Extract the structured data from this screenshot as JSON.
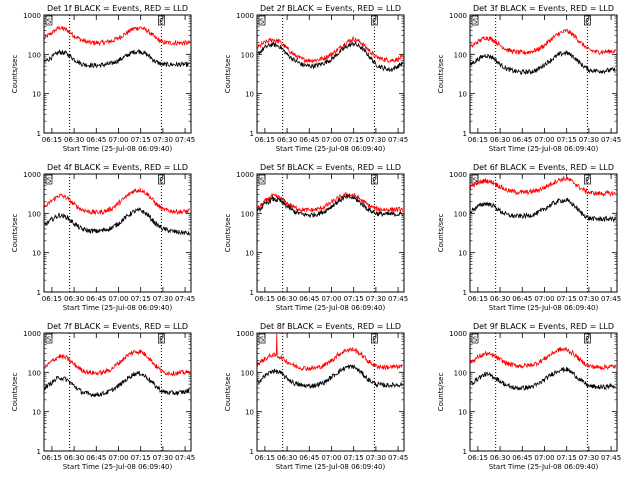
{
  "figure": {
    "background": "#ffffff",
    "axis_color": "#000000",
    "series_colors": {
      "events": "#000000",
      "lld": "#ff0000"
    },
    "marker_line_style": "dotted"
  },
  "chart_data": [
    {
      "type": "line",
      "title": "Det 1f BLACK = Events, RED = LLD",
      "xlabel": "Start Time (25-Jul-08 06:09:40)",
      "ylabel": "Counts/sec",
      "xlim": [
        "06:09:40",
        "07:49:00"
      ],
      "ylim": [
        1,
        1000
      ],
      "yscale": "log",
      "xticks": [
        "06:15",
        "06:30",
        "06:45",
        "07:00",
        "07:15",
        "07:30",
        "07:45"
      ],
      "yticks": [
        "1",
        "10",
        "100",
        "1000"
      ],
      "vlines": [
        "06:27",
        "07:29"
      ],
      "corner_markers": [
        "S",
        "E"
      ],
      "x": [
        "06:10",
        "06:15",
        "06:20",
        "06:25",
        "06:30",
        "06:35",
        "06:40",
        "06:45",
        "06:50",
        "06:55",
        "07:00",
        "07:05",
        "07:10",
        "07:15",
        "07:20",
        "07:25",
        "07:30",
        "07:35",
        "07:40",
        "07:45",
        "07:48"
      ],
      "series": [
        {
          "name": "LLD",
          "color": "red",
          "values": [
            260,
            350,
            480,
            420,
            300,
            230,
            200,
            195,
            200,
            215,
            260,
            340,
            450,
            480,
            390,
            260,
            200,
            195,
            195,
            195,
            195
          ]
        },
        {
          "name": "Events",
          "color": "black",
          "values": [
            65,
            85,
            115,
            105,
            75,
            57,
            53,
            52,
            54,
            58,
            70,
            90,
            115,
            120,
            95,
            65,
            55,
            55,
            55,
            55,
            55
          ]
        }
      ]
    },
    {
      "type": "line",
      "title": "Det 2f BLACK = Events, RED = LLD",
      "xlabel": "Start Time (25-Jul-08 06:09:40)",
      "ylabel": "Counts/sec",
      "xlim": [
        "06:09:40",
        "07:49:00"
      ],
      "ylim": [
        1,
        1000
      ],
      "yscale": "log",
      "xticks": [
        "06:15",
        "06:30",
        "06:45",
        "07:00",
        "07:15",
        "07:30",
        "07:45"
      ],
      "yticks": [
        "1",
        "10",
        "100",
        "1000"
      ],
      "vlines": [
        "06:27",
        "07:29"
      ],
      "corner_markers": [
        "S",
        "E"
      ],
      "x": [
        "06:10",
        "06:15",
        "06:20",
        "06:25",
        "06:30",
        "06:35",
        "06:40",
        "06:45",
        "06:50",
        "06:55",
        "07:00",
        "07:05",
        "07:10",
        "07:15",
        "07:20",
        "07:25",
        "07:30",
        "07:35",
        "07:40",
        "07:45",
        "07:48"
      ],
      "series": [
        {
          "name": "LLD",
          "color": "red",
          "values": [
            150,
            200,
            240,
            210,
            140,
            95,
            75,
            70,
            72,
            80,
            100,
            140,
            200,
            250,
            200,
            130,
            85,
            75,
            70,
            75,
            85
          ]
        },
        {
          "name": "Events",
          "color": "black",
          "values": [
            100,
            150,
            180,
            160,
            100,
            70,
            55,
            50,
            52,
            60,
            75,
            110,
            155,
            190,
            150,
            95,
            55,
            45,
            40,
            50,
            60
          ]
        }
      ]
    },
    {
      "type": "line",
      "title": "Det 3f BLACK = Events, RED = LLD",
      "xlabel": "Start Time (25-Jul-08 06:09:40)",
      "ylabel": "Counts/sec",
      "xlim": [
        "06:09:40",
        "07:49:00"
      ],
      "ylim": [
        1,
        1000
      ],
      "yscale": "log",
      "xticks": [
        "06:15",
        "06:30",
        "06:45",
        "07:00",
        "07:15",
        "07:30",
        "07:45"
      ],
      "yticks": [
        "1",
        "10",
        "100",
        "1000"
      ],
      "vlines": [
        "06:27",
        "07:29"
      ],
      "corner_markers": [
        "S",
        "E"
      ],
      "x": [
        "06:10",
        "06:15",
        "06:20",
        "06:25",
        "06:30",
        "06:35",
        "06:40",
        "06:45",
        "06:50",
        "06:55",
        "07:00",
        "07:05",
        "07:10",
        "07:15",
        "07:20",
        "07:25",
        "07:30",
        "07:35",
        "07:40",
        "07:45",
        "07:48"
      ],
      "series": [
        {
          "name": "LLD",
          "color": "red",
          "values": [
            150,
            210,
            270,
            240,
            170,
            130,
            115,
            110,
            115,
            130,
            170,
            250,
            340,
            400,
            300,
            190,
            130,
            115,
            115,
            120,
            120
          ]
        },
        {
          "name": "Events",
          "color": "black",
          "values": [
            55,
            75,
            95,
            85,
            55,
            42,
            37,
            35,
            36,
            40,
            55,
            75,
            100,
            110,
            85,
            55,
            40,
            38,
            38,
            40,
            40
          ]
        }
      ]
    },
    {
      "type": "line",
      "title": "Det 4f BLACK = Events, RED = LLD",
      "xlabel": "Start Time (25-Jul-08 06:09:40)",
      "ylabel": "Counts/sec",
      "xlim": [
        "06:09:40",
        "07:49:00"
      ],
      "ylim": [
        1,
        1000
      ],
      "yscale": "log",
      "xticks": [
        "06:15",
        "06:30",
        "06:45",
        "07:00",
        "07:15",
        "07:30",
        "07:45"
      ],
      "yticks": [
        "1",
        "10",
        "100",
        "1000"
      ],
      "vlines": [
        "06:27",
        "07:29"
      ],
      "corner_markers": [
        "S",
        "E"
      ],
      "x": [
        "06:10",
        "06:15",
        "06:20",
        "06:25",
        "06:30",
        "06:35",
        "06:40",
        "06:45",
        "06:50",
        "06:55",
        "07:00",
        "07:05",
        "07:10",
        "07:15",
        "07:20",
        "07:25",
        "07:30",
        "07:35",
        "07:40",
        "07:45",
        "07:48"
      ],
      "series": [
        {
          "name": "LLD",
          "color": "red",
          "values": [
            140,
            210,
            290,
            250,
            170,
            125,
            110,
            105,
            110,
            130,
            180,
            260,
            370,
            400,
            300,
            180,
            125,
            115,
            110,
            110,
            115
          ]
        },
        {
          "name": "Events",
          "color": "black",
          "values": [
            50,
            70,
            90,
            80,
            55,
            40,
            36,
            35,
            37,
            42,
            55,
            80,
            110,
            120,
            90,
            55,
            40,
            36,
            33,
            32,
            30
          ]
        }
      ]
    },
    {
      "type": "line",
      "title": "Det 5f BLACK = Events, RED = LLD",
      "xlabel": "Start Time (25-Jul-08 06:09:40)",
      "ylabel": "Counts/sec",
      "xlim": [
        "06:09:40",
        "07:49:00"
      ],
      "ylim": [
        1,
        1000
      ],
      "yscale": "log",
      "xticks": [
        "06:15",
        "06:30",
        "06:45",
        "07:00",
        "07:15",
        "07:30",
        "07:45"
      ],
      "yticks": [
        "1",
        "10",
        "100",
        "1000"
      ],
      "vlines": [
        "06:27",
        "07:29"
      ],
      "corner_markers": [
        "S",
        "E"
      ],
      "x": [
        "06:10",
        "06:15",
        "06:20",
        "06:25",
        "06:30",
        "06:35",
        "06:40",
        "06:45",
        "06:50",
        "06:55",
        "07:00",
        "07:05",
        "07:10",
        "07:15",
        "07:20",
        "07:25",
        "07:30",
        "07:35",
        "07:40",
        "07:45",
        "07:48"
      ],
      "series": [
        {
          "name": "LLD",
          "color": "red",
          "values": [
            130,
            200,
            280,
            250,
            180,
            140,
            125,
            120,
            125,
            145,
            190,
            250,
            300,
            290,
            220,
            160,
            130,
            125,
            125,
            125,
            125
          ]
        },
        {
          "name": "Events",
          "color": "black",
          "values": [
            110,
            170,
            230,
            210,
            150,
            110,
            95,
            90,
            95,
            110,
            150,
            210,
            260,
            250,
            180,
            125,
            100,
            95,
            95,
            95,
            95
          ]
        }
      ]
    },
    {
      "type": "line",
      "title": "Det 6f BLACK = Events, RED = LLD",
      "xlabel": "Start Time (25-Jul-08 06:09:40)",
      "ylabel": "Counts/sec",
      "xlim": [
        "06:09:40",
        "07:49:00"
      ],
      "ylim": [
        1,
        1000
      ],
      "yscale": "log",
      "xticks": [
        "06:15",
        "06:30",
        "06:45",
        "07:00",
        "07:15",
        "07:30",
        "07:45"
      ],
      "yticks": [
        "1",
        "10",
        "100",
        "1000"
      ],
      "vlines": [
        "06:27",
        "07:29"
      ],
      "corner_markers": [
        "S",
        "E"
      ],
      "x": [
        "06:10",
        "06:15",
        "06:20",
        "06:25",
        "06:30",
        "06:35",
        "06:40",
        "06:45",
        "06:50",
        "06:55",
        "07:00",
        "07:05",
        "07:10",
        "07:15",
        "07:20",
        "07:25",
        "07:30",
        "07:35",
        "07:40",
        "07:45",
        "07:48"
      ],
      "series": [
        {
          "name": "LLD",
          "color": "red",
          "values": [
            480,
            600,
            680,
            620,
            480,
            380,
            350,
            340,
            350,
            380,
            450,
            580,
            720,
            760,
            600,
            420,
            340,
            320,
            320,
            320,
            320
          ]
        },
        {
          "name": "Events",
          "color": "black",
          "values": [
            110,
            150,
            180,
            160,
            115,
            90,
            85,
            85,
            88,
            100,
            130,
            170,
            210,
            215,
            160,
            100,
            75,
            72,
            72,
            72,
            72
          ]
        }
      ]
    },
    {
      "type": "line",
      "title": "Det 7f BLACK = Events, RED = LLD",
      "xlabel": "Start Time (25-Jul-08 06:09:40)",
      "ylabel": "Counts/sec",
      "xlim": [
        "06:09:40",
        "07:49:00"
      ],
      "ylim": [
        1,
        1000
      ],
      "yscale": "log",
      "xticks": [
        "06:15",
        "06:30",
        "06:45",
        "07:00",
        "07:15",
        "07:30",
        "07:45"
      ],
      "yticks": [
        "1",
        "10",
        "100",
        "1000"
      ],
      "vlines": [
        "06:27",
        "07:29"
      ],
      "corner_markers": [
        "S",
        "E"
      ],
      "x": [
        "06:10",
        "06:15",
        "06:20",
        "06:25",
        "06:30",
        "06:35",
        "06:40",
        "06:45",
        "06:50",
        "06:55",
        "07:00",
        "07:05",
        "07:10",
        "07:15",
        "07:20",
        "07:25",
        "07:30",
        "07:35",
        "07:40",
        "07:45",
        "07:48"
      ],
      "series": [
        {
          "name": "LLD",
          "color": "red",
          "values": [
            130,
            190,
            260,
            230,
            160,
            115,
            100,
            95,
            100,
            120,
            170,
            250,
            330,
            340,
            250,
            150,
            100,
            95,
            95,
            100,
            100
          ]
        },
        {
          "name": "Events",
          "color": "black",
          "values": [
            40,
            55,
            75,
            65,
            45,
            32,
            28,
            27,
            29,
            34,
            45,
            65,
            90,
            95,
            70,
            45,
            32,
            30,
            30,
            32,
            35
          ]
        }
      ]
    },
    {
      "type": "line",
      "title": "Det 8f BLACK = Events, RED = LLD",
      "xlabel": "Start Time (25-Jul-08 06:09:40)",
      "ylabel": "Counts/sec",
      "xlim": [
        "06:09:40",
        "07:49:00"
      ],
      "ylim": [
        1,
        1000
      ],
      "yscale": "log",
      "xticks": [
        "06:15",
        "06:30",
        "06:45",
        "07:00",
        "07:15",
        "07:30",
        "07:45"
      ],
      "yticks": [
        "1",
        "10",
        "100",
        "1000"
      ],
      "vlines": [
        "06:27",
        "07:29"
      ],
      "corner_markers": [
        "S",
        "E"
      ],
      "annotations": [
        {
          "type": "spike",
          "series": "LLD",
          "x": "06:23",
          "value": 1000
        }
      ],
      "x": [
        "06:10",
        "06:15",
        "06:20",
        "06:25",
        "06:30",
        "06:35",
        "06:40",
        "06:45",
        "06:50",
        "06:55",
        "07:00",
        "07:05",
        "07:10",
        "07:15",
        "07:20",
        "07:25",
        "07:30",
        "07:35",
        "07:40",
        "07:45",
        "07:48"
      ],
      "series": [
        {
          "name": "LLD",
          "color": "red",
          "values": [
            160,
            220,
            280,
            250,
            190,
            145,
            130,
            125,
            130,
            150,
            200,
            290,
            370,
            380,
            290,
            190,
            145,
            135,
            135,
            140,
            140
          ]
        },
        {
          "name": "Events",
          "color": "black",
          "values": [
            55,
            80,
            110,
            100,
            70,
            52,
            46,
            45,
            48,
            55,
            75,
            105,
            135,
            140,
            100,
            65,
            50,
            47,
            47,
            48,
            50
          ]
        }
      ]
    },
    {
      "type": "line",
      "title": "Det 9f BLACK = Events, RED = LLD",
      "xlabel": "Start Time (25-Jul-08 06:09:40)",
      "ylabel": "Counts/sec",
      "xlim": [
        "06:09:40",
        "07:49:00"
      ],
      "ylim": [
        1,
        1000
      ],
      "yscale": "log",
      "xticks": [
        "06:15",
        "06:30",
        "06:45",
        "07:00",
        "07:15",
        "07:30",
        "07:45"
      ],
      "yticks": [
        "1",
        "10",
        "100",
        "1000"
      ],
      "vlines": [
        "06:27",
        "07:29"
      ],
      "corner_markers": [
        "S",
        "E"
      ],
      "x": [
        "06:10",
        "06:15",
        "06:20",
        "06:25",
        "06:30",
        "06:35",
        "06:40",
        "06:45",
        "06:50",
        "06:55",
        "07:00",
        "07:05",
        "07:10",
        "07:15",
        "07:20",
        "07:25",
        "07:30",
        "07:35",
        "07:40",
        "07:45",
        "07:48"
      ],
      "series": [
        {
          "name": "LLD",
          "color": "red",
          "values": [
            180,
            240,
            300,
            270,
            210,
            165,
            150,
            145,
            150,
            170,
            220,
            300,
            380,
            380,
            290,
            190,
            145,
            135,
            135,
            140,
            140
          ]
        },
        {
          "name": "Events",
          "color": "black",
          "values": [
            50,
            70,
            90,
            80,
            60,
            45,
            40,
            40,
            42,
            48,
            65,
            90,
            115,
            120,
            90,
            60,
            45,
            42,
            42,
            45,
            45
          ]
        }
      ]
    }
  ]
}
